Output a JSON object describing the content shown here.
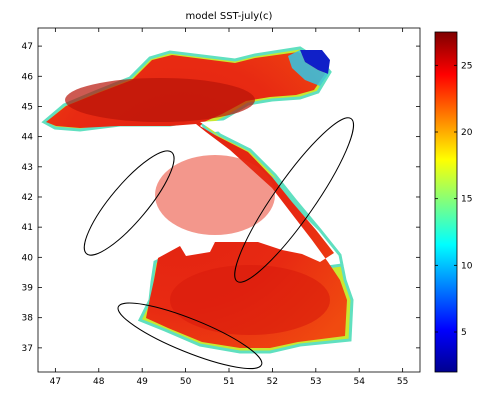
{
  "chart_data": {
    "type": "heatmap",
    "title": "model SST-july(c)",
    "xlabel": "",
    "ylabel": "",
    "xlim": [
      46.6,
      55.4
    ],
    "ylim": [
      36.2,
      47.6
    ],
    "x_ticks": [
      47,
      48,
      49,
      50,
      51,
      52,
      53,
      54,
      55
    ],
    "y_ticks": [
      37,
      38,
      39,
      40,
      41,
      42,
      43,
      44,
      45,
      46,
      47
    ],
    "colorbar": {
      "range": [
        2,
        27.5
      ],
      "ticks": [
        5,
        10,
        15,
        20,
        25
      ],
      "colormap": "jet"
    },
    "ellipses": [
      {
        "name": "east-ellipse",
        "cx": 52.5,
        "cy": 41.9,
        "rx": 2.7,
        "ry": 0.55,
        "angle_deg": 55
      },
      {
        "name": "west-ellipse",
        "cx": 48.7,
        "cy": 41.8,
        "rx": 1.8,
        "ry": 0.5,
        "angle_deg": 50
      },
      {
        "name": "south-ellipse",
        "cx": 50.1,
        "cy": 37.4,
        "rx": 2.1,
        "ry": 0.45,
        "angle_deg": -22
      }
    ],
    "regions": [
      {
        "name": "north-caspian-core",
        "value": 26.5
      },
      {
        "name": "middle-caspian",
        "value": 25.5
      },
      {
        "name": "south-caspian",
        "value": 25.8
      },
      {
        "name": "northeast-cold-corner",
        "value": 3
      },
      {
        "name": "coastal-fringe",
        "value": 18
      }
    ],
    "grid": false,
    "legend": "colorbar-right"
  }
}
